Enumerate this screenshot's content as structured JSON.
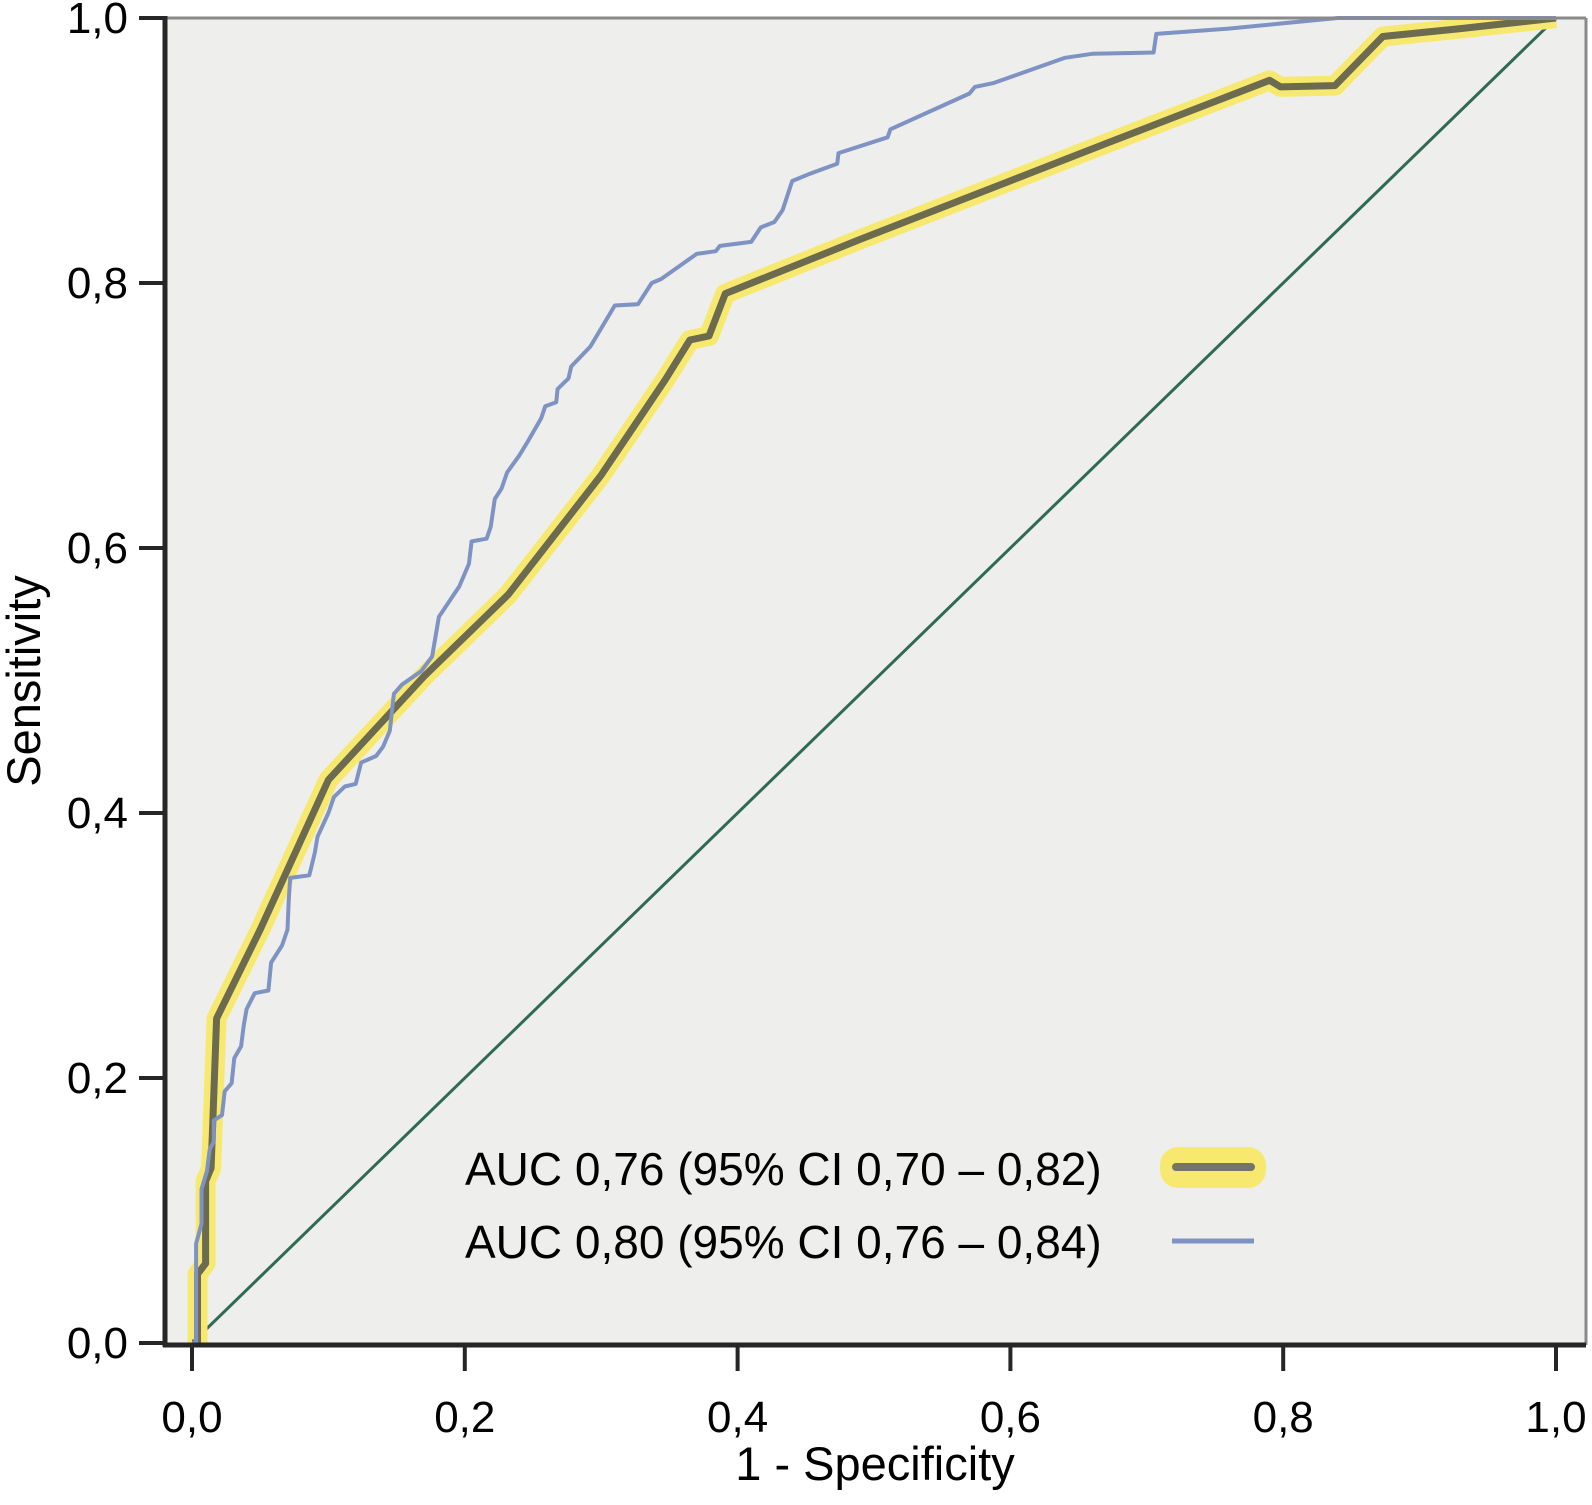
{
  "chart_data": {
    "type": "line",
    "subtype": "roc-curve",
    "title": "",
    "xlabel": "1 - Specificity",
    "ylabel": "Sensitivity",
    "xlim": [
      0.0,
      1.0
    ],
    "ylim": [
      0.0,
      1.0
    ],
    "grid": false,
    "legend_position": "inside-bottom-center",
    "colors": {
      "plot_background": "#eeeeec",
      "frame_gray": "#8a8a8a",
      "axis_black": "#262626",
      "text": "#000000",
      "curve1_core": "#6c6a4f",
      "curve1_halo": "#f7e96f",
      "curve1_legend_core": "#75746a",
      "curve2_blue": "#7e93c3",
      "reference_green": "#2f6a52"
    },
    "x_ticks": {
      "values": [
        0.0,
        0.2,
        0.4,
        0.6,
        0.8,
        1.0
      ],
      "labels": [
        "0,0",
        "0,2",
        "0,4",
        "0,6",
        "0,8",
        "1,0"
      ]
    },
    "y_ticks": {
      "values": [
        0.0,
        0.2,
        0.4,
        0.6,
        0.8,
        1.0
      ],
      "labels": [
        "0,0",
        "0,2",
        "0,4",
        "0,6",
        "0,8",
        "1,0"
      ]
    },
    "legend": {
      "entries": [
        {
          "label": "AUC 0,76 (95% CI 0,70 – 0,82)",
          "marker": "thick-gray-line-with-yellow-highlight"
        },
        {
          "label": "AUC 0,80 (95% CI 0,76 – 0,84)",
          "marker": "thin-blue-line"
        }
      ]
    },
    "series": [
      {
        "name": "AUC 0,76 (95% CI 0,70 – 0,82)",
        "style": "thick gray line with yellow highlight",
        "points": [
          [
            0.0,
            0.0
          ],
          [
            0.004,
            0.0
          ],
          [
            0.004,
            0.052
          ],
          [
            0.01,
            0.06
          ],
          [
            0.01,
            0.122
          ],
          [
            0.014,
            0.132
          ],
          [
            0.018,
            0.245
          ],
          [
            0.05,
            0.312
          ],
          [
            0.1,
            0.425
          ],
          [
            0.17,
            0.503
          ],
          [
            0.215,
            0.548
          ],
          [
            0.232,
            0.565
          ],
          [
            0.3,
            0.655
          ],
          [
            0.347,
            0.727
          ],
          [
            0.365,
            0.757
          ],
          [
            0.379,
            0.76
          ],
          [
            0.391,
            0.792
          ],
          [
            0.49,
            0.833
          ],
          [
            0.672,
            0.906
          ],
          [
            0.79,
            0.953
          ],
          [
            0.798,
            0.948
          ],
          [
            0.838,
            0.949
          ],
          [
            0.873,
            0.986
          ],
          [
            0.93,
            0.992
          ],
          [
            1.0,
            1.0
          ]
        ]
      },
      {
        "name": "AUC 0,80 (95% CI 0,76 – 0,84)",
        "style": "thin blue stepped line",
        "points": [
          [
            0.0,
            0.0
          ],
          [
            0.003,
            0.0
          ],
          [
            0.003,
            0.075
          ],
          [
            0.007,
            0.09
          ],
          [
            0.007,
            0.116
          ],
          [
            0.011,
            0.13
          ],
          [
            0.013,
            0.146
          ],
          [
            0.016,
            0.152
          ],
          [
            0.016,
            0.168
          ],
          [
            0.022,
            0.172
          ],
          [
            0.024,
            0.19
          ],
          [
            0.029,
            0.196
          ],
          [
            0.031,
            0.215
          ],
          [
            0.036,
            0.224
          ],
          [
            0.038,
            0.24
          ],
          [
            0.04,
            0.252
          ],
          [
            0.046,
            0.264
          ],
          [
            0.056,
            0.266
          ],
          [
            0.058,
            0.287
          ],
          [
            0.066,
            0.3
          ],
          [
            0.07,
            0.312
          ],
          [
            0.071,
            0.335
          ],
          [
            0.072,
            0.351
          ],
          [
            0.086,
            0.353
          ],
          [
            0.09,
            0.37
          ],
          [
            0.092,
            0.382
          ],
          [
            0.1,
            0.4
          ],
          [
            0.104,
            0.412
          ],
          [
            0.112,
            0.42
          ],
          [
            0.12,
            0.422
          ],
          [
            0.124,
            0.438
          ],
          [
            0.135,
            0.443
          ],
          [
            0.14,
            0.45
          ],
          [
            0.145,
            0.462
          ],
          [
            0.148,
            0.49
          ],
          [
            0.154,
            0.497
          ],
          [
            0.168,
            0.507
          ],
          [
            0.176,
            0.518
          ],
          [
            0.181,
            0.548
          ],
          [
            0.196,
            0.571
          ],
          [
            0.203,
            0.588
          ],
          [
            0.205,
            0.605
          ],
          [
            0.216,
            0.607
          ],
          [
            0.219,
            0.616
          ],
          [
            0.222,
            0.637
          ],
          [
            0.227,
            0.645
          ],
          [
            0.231,
            0.657
          ],
          [
            0.24,
            0.67
          ],
          [
            0.246,
            0.68
          ],
          [
            0.256,
            0.698
          ],
          [
            0.259,
            0.707
          ],
          [
            0.267,
            0.71
          ],
          [
            0.268,
            0.72
          ],
          [
            0.276,
            0.728
          ],
          [
            0.278,
            0.737
          ],
          [
            0.292,
            0.752
          ],
          [
            0.31,
            0.783
          ],
          [
            0.327,
            0.784
          ],
          [
            0.337,
            0.8
          ],
          [
            0.344,
            0.803
          ],
          [
            0.37,
            0.822
          ],
          [
            0.384,
            0.824
          ],
          [
            0.387,
            0.828
          ],
          [
            0.41,
            0.831
          ],
          [
            0.417,
            0.842
          ],
          [
            0.427,
            0.846
          ],
          [
            0.433,
            0.855
          ],
          [
            0.44,
            0.877
          ],
          [
            0.452,
            0.882
          ],
          [
            0.473,
            0.89
          ],
          [
            0.474,
            0.898
          ],
          [
            0.51,
            0.91
          ],
          [
            0.512,
            0.916
          ],
          [
            0.57,
            0.943
          ],
          [
            0.574,
            0.948
          ],
          [
            0.588,
            0.951
          ],
          [
            0.64,
            0.97
          ],
          [
            0.66,
            0.973
          ],
          [
            0.705,
            0.974
          ],
          [
            0.707,
            0.988
          ],
          [
            0.76,
            0.992
          ],
          [
            0.8,
            0.996
          ],
          [
            0.84,
            1.0
          ],
          [
            1.0,
            1.0
          ]
        ]
      },
      {
        "name": "reference-diagonal",
        "style": "thin dark green diagonal",
        "points": [
          [
            0.0,
            0.0
          ],
          [
            1.0,
            1.0
          ]
        ]
      }
    ]
  }
}
